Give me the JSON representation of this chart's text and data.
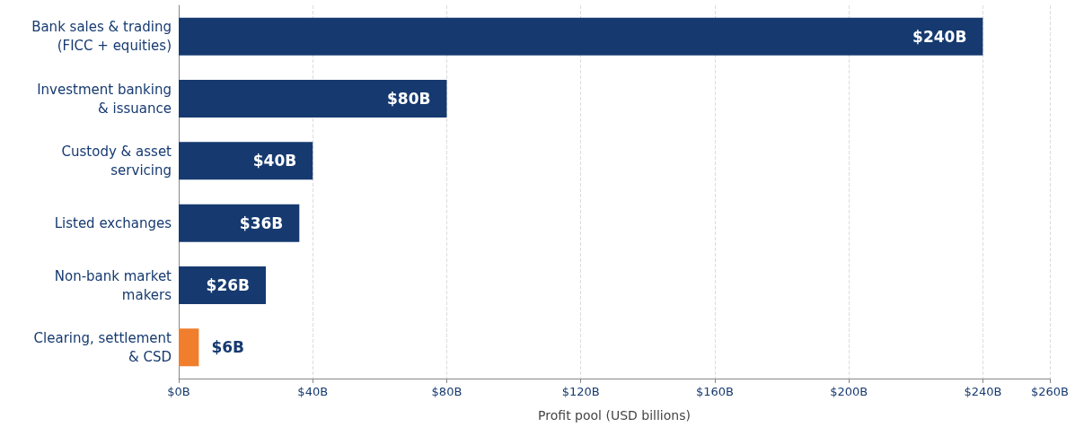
{
  "chart_data": {
    "type": "bar",
    "orientation": "horizontal",
    "xlabel": "Profit pool (USD billions)",
    "categories": [
      "Bank sales & trading\n(FICC + equities)",
      "Investment banking\n& issuance",
      "Custody & asset\nservicing",
      "Listed exchanges",
      "Non-bank market\nmakers",
      "Clearing, settlement\n& CSD"
    ],
    "values": [
      240,
      80,
      40,
      36,
      26,
      6
    ],
    "colors": [
      "#163a70",
      "#163a70",
      "#163a70",
      "#163a70",
      "#163a70",
      "#f07e2c"
    ],
    "value_labels": [
      "$240B",
      "$80B",
      "$40B",
      "$36B",
      "$26B",
      "$6B"
    ],
    "xlim": [
      0,
      260
    ],
    "xticks": [
      {
        "value": 0,
        "label": "$0B"
      },
      {
        "value": 40,
        "label": "$40B"
      },
      {
        "value": 80,
        "label": "$80B"
      },
      {
        "value": 120,
        "label": "$120B"
      },
      {
        "value": 160,
        "label": "$160B"
      },
      {
        "value": 200,
        "label": "$200B"
      },
      {
        "value": 240,
        "label": "$240B"
      },
      {
        "value": 260,
        "label": "$260B"
      }
    ],
    "grid": "x"
  }
}
